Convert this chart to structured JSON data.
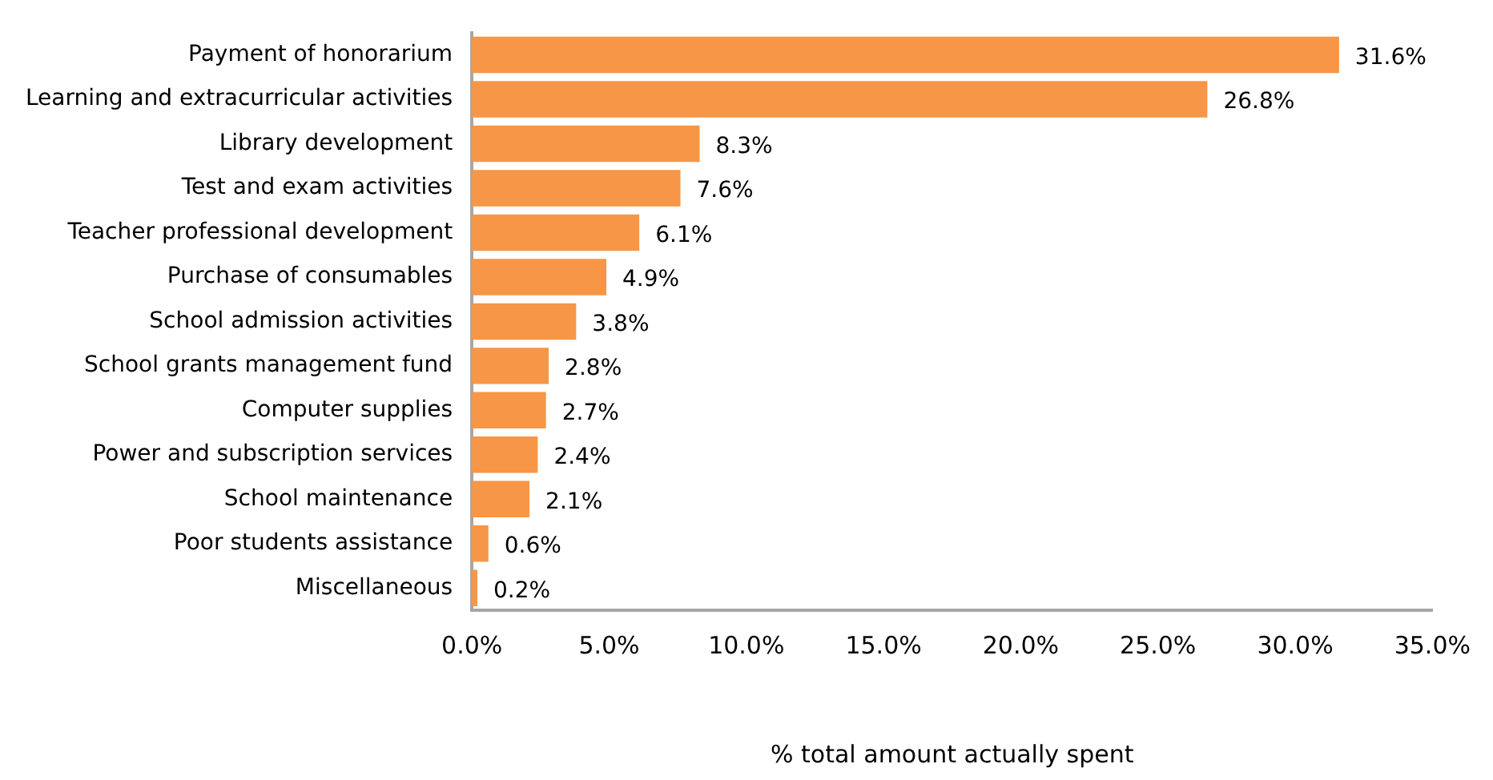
{
  "chart_data": {
    "type": "bar",
    "orientation": "horizontal",
    "xlabel": "% total amount actually spent",
    "categories": [
      "Payment of honorarium",
      "Learning and extracurricular activities",
      "Library development",
      "Test and exam activities",
      "Teacher professional development",
      "Purchase of consumables",
      "School admission activities",
      "School grants management fund",
      "Computer supplies",
      "Power and subscription services",
      "School maintenance",
      "Poor students assistance",
      "Miscellaneous"
    ],
    "values": [
      31.6,
      26.8,
      8.3,
      7.6,
      6.1,
      4.9,
      3.8,
      2.8,
      2.7,
      2.4,
      2.1,
      0.6,
      0.2
    ],
    "value_labels": [
      "31.6%",
      "26.8%",
      "8.3%",
      "7.6%",
      "6.1%",
      "4.9%",
      "3.8%",
      "2.8%",
      "2.7%",
      "2.4%",
      "2.1%",
      "0.6%",
      "0.2%"
    ],
    "color": "#f79646",
    "xlim": [
      0,
      35
    ],
    "xticks": [
      {
        "value": 0,
        "label": "0.0%"
      },
      {
        "value": 5,
        "label": "5.0%"
      },
      {
        "value": 10,
        "label": "10.0%"
      },
      {
        "value": 15,
        "label": "15.0%"
      },
      {
        "value": 20,
        "label": "20.0%"
      },
      {
        "value": 25,
        "label": "25.0%"
      },
      {
        "value": 30,
        "label": "30.0%"
      },
      {
        "value": 35,
        "label": "35.0%"
      }
    ],
    "grid": false,
    "legend": false
  }
}
